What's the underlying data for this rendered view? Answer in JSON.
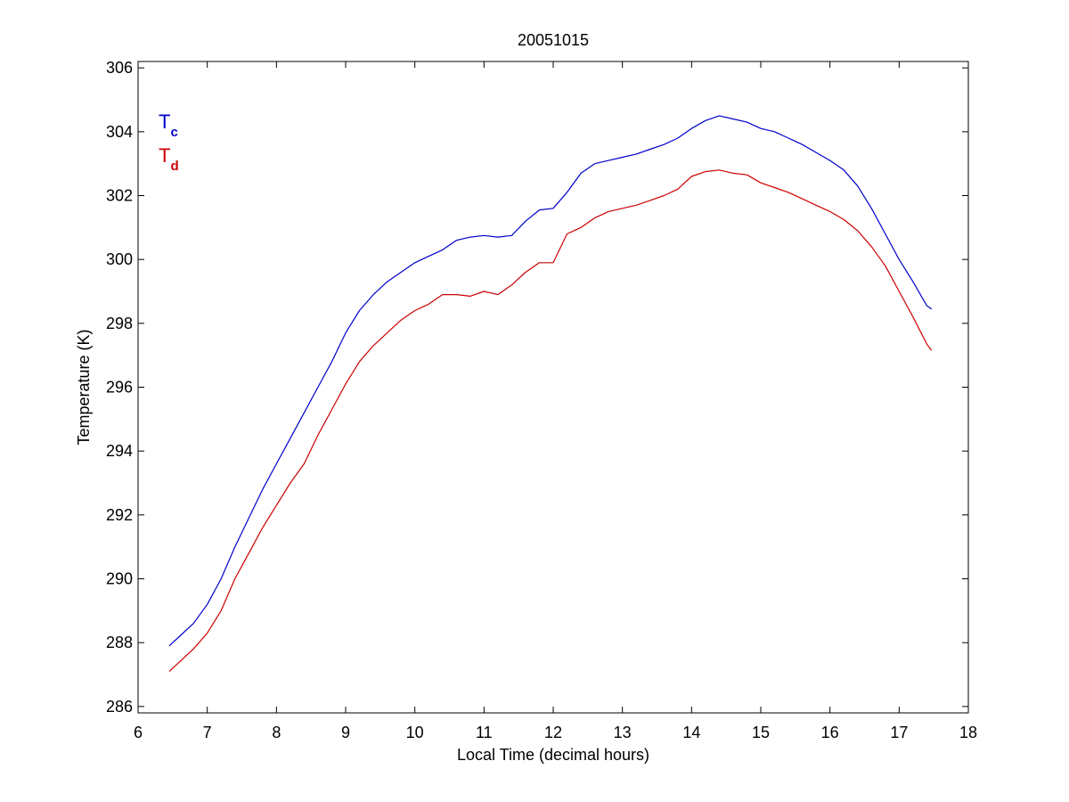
{
  "chart_data": {
    "type": "line",
    "title": "20051015",
    "xlabel": "Local Time (decimal hours)",
    "ylabel": "Temperature (K)",
    "xlim": [
      6,
      18
    ],
    "ylim": [
      285.8,
      306.2
    ],
    "xticks": [
      6,
      7,
      8,
      9,
      10,
      11,
      12,
      13,
      14,
      15,
      16,
      17,
      18
    ],
    "yticks": [
      286,
      288,
      290,
      292,
      294,
      296,
      298,
      300,
      302,
      304,
      306
    ],
    "grid": false,
    "legend_placement": "top-left",
    "series": [
      {
        "name": "Tc",
        "label_main": "T",
        "label_sub": "c",
        "color": "#0000cc",
        "x": [
          6.45,
          6.6,
          6.8,
          7.0,
          7.2,
          7.4,
          7.6,
          7.8,
          8.0,
          8.2,
          8.4,
          8.6,
          8.8,
          9.0,
          9.2,
          9.4,
          9.6,
          9.8,
          10.0,
          10.2,
          10.4,
          10.6,
          10.8,
          11.0,
          11.2,
          11.4,
          11.6,
          11.8,
          12.0,
          12.2,
          12.4,
          12.6,
          12.8,
          13.0,
          13.2,
          13.4,
          13.6,
          13.8,
          14.0,
          14.2,
          14.4,
          14.6,
          14.8,
          15.0,
          15.2,
          15.4,
          15.6,
          15.8,
          16.0,
          16.2,
          16.4,
          16.6,
          16.8,
          17.0,
          17.2,
          17.4,
          17.47
        ],
        "y": [
          287.9,
          288.2,
          288.6,
          289.2,
          290.0,
          291.0,
          291.9,
          292.8,
          293.6,
          294.4,
          295.2,
          296.0,
          296.8,
          297.7,
          298.4,
          298.9,
          299.3,
          299.6,
          299.9,
          300.1,
          300.3,
          300.6,
          300.7,
          300.75,
          300.7,
          300.75,
          301.2,
          301.55,
          301.6,
          302.1,
          302.7,
          303.0,
          303.1,
          303.2,
          303.3,
          303.45,
          303.6,
          303.8,
          304.1,
          304.35,
          304.5,
          304.4,
          304.3,
          304.1,
          304.0,
          303.8,
          303.6,
          303.35,
          303.1,
          302.8,
          302.3,
          301.6,
          300.8,
          300.0,
          299.3,
          298.55,
          298.45
        ]
      },
      {
        "name": "Td",
        "label_main": "T",
        "label_sub": "d",
        "color": "#cc0000",
        "x": [
          6.45,
          6.6,
          6.8,
          7.0,
          7.2,
          7.4,
          7.6,
          7.8,
          8.0,
          8.2,
          8.4,
          8.6,
          8.8,
          9.0,
          9.2,
          9.4,
          9.6,
          9.8,
          10.0,
          10.2,
          10.4,
          10.6,
          10.8,
          11.0,
          11.2,
          11.4,
          11.6,
          11.8,
          12.0,
          12.2,
          12.4,
          12.6,
          12.8,
          13.0,
          13.2,
          13.4,
          13.6,
          13.8,
          14.0,
          14.2,
          14.4,
          14.6,
          14.8,
          15.0,
          15.2,
          15.4,
          15.6,
          15.8,
          16.0,
          16.2,
          16.4,
          16.6,
          16.8,
          17.0,
          17.2,
          17.4,
          17.47
        ],
        "y": [
          287.1,
          287.4,
          287.8,
          288.3,
          289.0,
          290.0,
          290.8,
          291.6,
          292.3,
          293.0,
          293.6,
          294.5,
          295.3,
          296.1,
          296.8,
          297.3,
          297.7,
          298.1,
          298.4,
          298.6,
          298.9,
          298.9,
          298.85,
          299.0,
          298.9,
          299.2,
          299.6,
          299.9,
          299.9,
          300.8,
          301.0,
          301.3,
          301.5,
          301.6,
          301.7,
          301.85,
          302.0,
          302.2,
          302.6,
          302.75,
          302.8,
          302.7,
          302.65,
          302.4,
          302.25,
          302.1,
          301.9,
          301.7,
          301.5,
          301.25,
          300.9,
          300.4,
          299.8,
          299.0,
          298.2,
          297.35,
          297.15
        ]
      }
    ]
  }
}
